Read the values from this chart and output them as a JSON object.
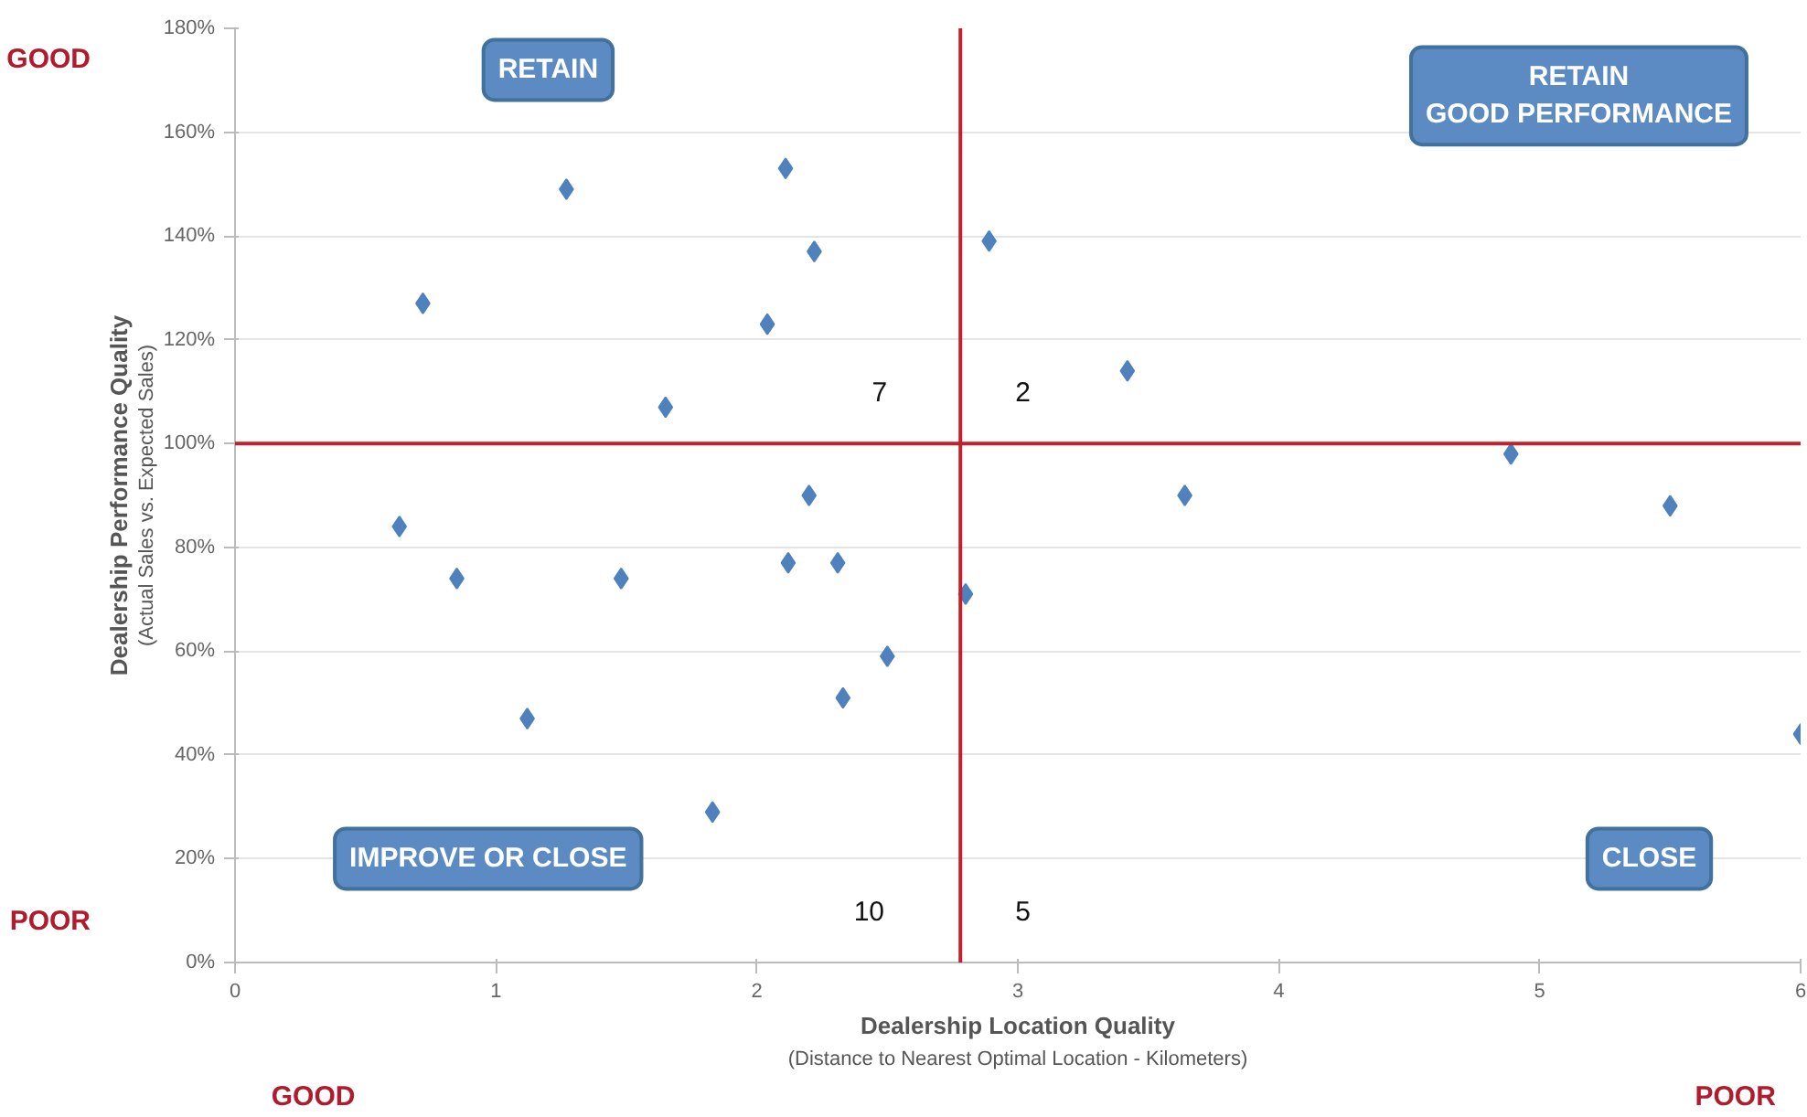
{
  "chart_data": {
    "type": "scatter",
    "xlabel": "Dealership Location Quality",
    "ylabel": "Dealership Performance Quality",
    "series": [
      {
        "color": "#4f81bd",
        "x": [
          1.27,
          2.11,
          2.22,
          0.72,
          2.04,
          1.65,
          2.89,
          3.42,
          2.2,
          3.64,
          4.89,
          5.5,
          0.63,
          0.85,
          1.48,
          2.12,
          2.31,
          2.8,
          2.5,
          2.33,
          1.12,
          1.83,
          6.0
        ],
        "values": [
          149,
          153,
          137,
          127,
          123,
          107,
          139,
          114,
          90,
          90,
          98,
          88,
          84,
          74,
          74,
          77,
          77,
          71,
          59,
          51,
          47,
          29,
          44
        ]
      }
    ],
    "marker": "diamond",
    "xlim": [
      0,
      6
    ],
    "xticks": [
      0,
      1,
      2,
      3,
      4,
      5,
      6
    ],
    "ylim": [
      0,
      180
    ],
    "yticks": [
      {
        "value": 0,
        "label": "0%"
      },
      {
        "value": 20,
        "label": "20%"
      },
      {
        "value": 40,
        "label": "40%"
      },
      {
        "value": 60,
        "label": "60%"
      },
      {
        "value": 80,
        "label": "80%"
      },
      {
        "value": 100,
        "label": "100%"
      },
      {
        "value": 120,
        "label": "120%"
      },
      {
        "value": 140,
        "label": "140%"
      },
      {
        "value": 160,
        "label": "160%"
      },
      {
        "value": 180,
        "label": "180%"
      }
    ],
    "grid": "y",
    "ref_lines": [
      {
        "axis": "x",
        "value": 2.78,
        "color": "#c0222c"
      },
      {
        "axis": "y",
        "value": 100,
        "color": "#c0222c"
      }
    ],
    "annotations": [
      "(Actual Sales vs. Expected Sales)",
      "(Distance to Nearest Optimal Location - Kilometers)",
      "RETAIN",
      "RETAIN\nGOOD PERFORMANCE",
      "IMPROVE OR CLOSE",
      "CLOSE",
      "7",
      "2",
      "10",
      "5",
      "GOOD",
      "POOR",
      "GOOD",
      "POOR"
    ]
  }
}
